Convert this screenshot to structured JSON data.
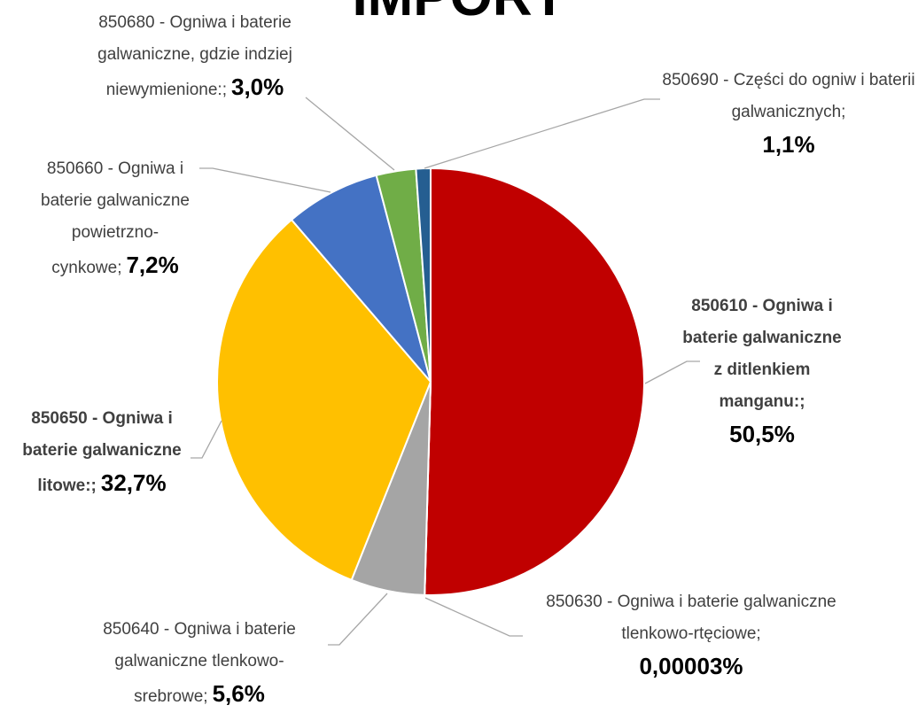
{
  "chart_data": {
    "type": "pie",
    "title": "IMPORT",
    "categories": [
      "850610 - Ogniwa i baterie galwaniczne z ditlenkiem manganu:;",
      "850630 - Ogniwa i baterie galwaniczne tlenkowo-rtęciowe;",
      "850640 - Ogniwa i baterie galwaniczne tlenkowo-srebrowe;",
      "850650 - Ogniwa i baterie galwaniczne litowe:;",
      "850660 - Ogniwa i baterie galwaniczne powietrzno-cynkowe;",
      "850680 - Ogniwa i baterie galwaniczne, gdzie indziej niewymienione:;",
      "850690 - Części do ogniw i baterii galwanicznych;"
    ],
    "values": [
      50.5,
      3e-05,
      5.6,
      32.7,
      7.2,
      3.0,
      1.1
    ],
    "value_labels": [
      "50,5%",
      "0,00003%",
      "5,6%",
      "32,7%",
      "7,2%",
      "3,0%",
      "1,1%"
    ],
    "colors": [
      "#c00000",
      "#ed7d31",
      "#a5a5a5",
      "#ffc000",
      "#4472c4",
      "#70ad47",
      "#255e91"
    ]
  }
}
